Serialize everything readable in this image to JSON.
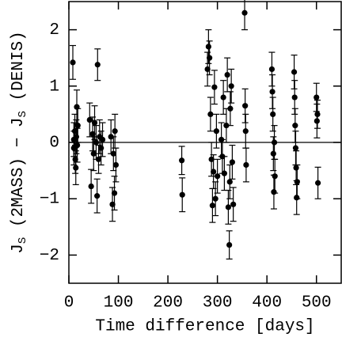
{
  "chart_data": {
    "type": "scatter",
    "xlabel": "Time difference [days]",
    "ylabel": [
      "J",
      "S",
      " (2MASS) − ",
      "J",
      "S",
      " (DENIS)"
    ],
    "xlim": [
      0,
      550
    ],
    "ylim": [
      -2.5,
      2.5
    ],
    "xticks": [
      0,
      100,
      200,
      300,
      400,
      500
    ],
    "yticks": [
      {
        "value": -2,
        "label": "−2"
      },
      {
        "value": -1,
        "label": "−1"
      },
      0,
      1,
      2
    ],
    "hline": 0,
    "color": "#000000",
    "x": [
      8,
      10,
      10,
      12,
      13,
      15,
      16,
      17,
      18,
      14,
      42,
      45,
      48,
      50,
      52,
      55,
      57,
      58,
      60,
      62,
      65,
      68,
      85,
      88,
      90,
      92,
      93,
      95,
      228,
      229,
      280,
      282,
      284,
      286,
      288,
      290,
      292,
      294,
      296,
      298,
      300,
      308,
      310,
      312,
      314,
      318,
      320,
      322,
      324,
      325,
      326,
      328,
      330,
      332,
      355,
      356,
      357,
      358,
      410,
      411,
      412,
      413,
      414,
      415,
      416,
      455,
      456,
      457,
      458,
      459,
      460,
      461,
      500,
      501,
      502,
      503
    ],
    "y": [
      1.42,
      0.05,
      -0.1,
      0.2,
      -0.3,
      0.1,
      0.63,
      -0.05,
      0.3,
      -0.45,
      0.4,
      -0.78,
      0.15,
      -0.2,
      0.35,
      0.0,
      -0.95,
      1.38,
      -0.3,
      0.1,
      -0.1,
      0.05,
      0.1,
      -1.1,
      -0.2,
      -0.9,
      0.2,
      -0.4,
      -0.32,
      -0.93,
      1.3,
      1.7,
      1.5,
      0.5,
      -0.3,
      -1.12,
      -0.52,
      0.98,
      -1.0,
      0.2,
      -0.6,
      0.05,
      -0.25,
      0.8,
      -0.55,
      0.3,
      1.2,
      -1.15,
      -1.82,
      -0.7,
      0.6,
      1.0,
      -0.35,
      -1.1,
      2.3,
      0.65,
      0.2,
      -0.4,
      1.3,
      0.9,
      0.5,
      -0.2,
      -0.88,
      0.0,
      -0.6,
      1.25,
      0.8,
      0.3,
      -0.1,
      -0.45,
      -0.98,
      -0.7,
      0.8,
      0.38,
      0.5,
      -0.72
    ],
    "yerr": [
      0.3,
      0.3,
      0.3,
      0.3,
      0.25,
      0.3,
      0.3,
      0.3,
      0.3,
      0.3,
      0.3,
      0.3,
      0.3,
      0.3,
      0.3,
      0.3,
      0.3,
      0.28,
      0.25,
      0.3,
      0.3,
      0.3,
      0.3,
      0.3,
      0.3,
      0.3,
      0.3,
      0.3,
      0.25,
      0.3,
      0.3,
      0.3,
      0.3,
      0.3,
      0.3,
      0.3,
      0.3,
      0.3,
      0.3,
      0.3,
      0.3,
      0.3,
      0.3,
      0.3,
      0.3,
      0.3,
      0.3,
      0.3,
      0.25,
      0.3,
      0.3,
      0.3,
      0.3,
      0.3,
      0.3,
      0.3,
      0.3,
      0.3,
      0.3,
      0.3,
      0.3,
      0.3,
      0.3,
      0.3,
      0.3,
      0.3,
      0.3,
      0.3,
      0.3,
      0.3,
      0.3,
      0.3,
      0.25,
      0.3,
      0.25,
      0.28
    ]
  }
}
